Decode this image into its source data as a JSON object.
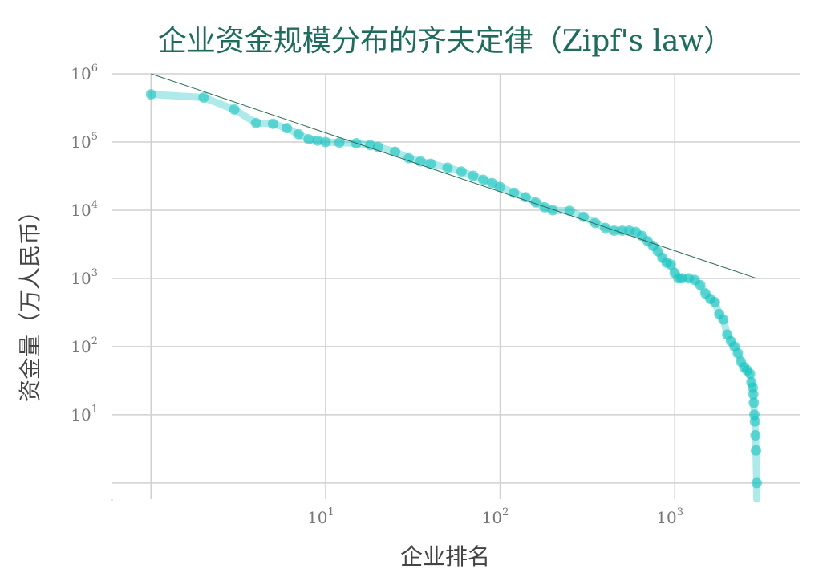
{
  "chart_data": {
    "type": "scatter",
    "title": "企业资金规模分布的齐夫定律（Zipf's law）",
    "xlabel": "企业排名",
    "ylabel": "资金量（万人民币）",
    "x_scale": "log",
    "y_scale": "log",
    "xlim": [
      0.6,
      5200
    ],
    "ylim": [
      0.58,
      1000000
    ],
    "grid": true,
    "x_ticks": [
      {
        "value": 1,
        "base": "",
        "exp": ""
      },
      {
        "value": 10,
        "base": "10",
        "exp": "1"
      },
      {
        "value": 100,
        "base": "10",
        "exp": "2"
      },
      {
        "value": 1000,
        "base": "10",
        "exp": "3"
      }
    ],
    "y_ticks": [
      {
        "value": 1,
        "base": "",
        "exp": ""
      },
      {
        "value": 10,
        "base": "10",
        "exp": "1"
      },
      {
        "value": 100,
        "base": "10",
        "exp": "2"
      },
      {
        "value": 1000,
        "base": "10",
        "exp": "3"
      },
      {
        "value": 10000,
        "base": "10",
        "exp": "4"
      },
      {
        "value": 100000,
        "base": "10",
        "exp": "5"
      },
      {
        "value": 1000000,
        "base": "10",
        "exp": "6"
      }
    ],
    "colors": {
      "points": "#17c3bf",
      "fit_line": "#2e6b55",
      "grid": "#d0d0d0",
      "title": "#1f6b5e"
    },
    "series": [
      {
        "type": "rank-size",
        "points": [
          [
            1,
            500000
          ],
          [
            2,
            450000
          ],
          [
            3,
            300000
          ],
          [
            4,
            190000
          ],
          [
            5,
            185000
          ],
          [
            6,
            160000
          ],
          [
            7,
            130000
          ],
          [
            8,
            110000
          ],
          [
            9,
            105000
          ],
          [
            10,
            100000
          ],
          [
            12,
            98000
          ],
          [
            15,
            96000
          ],
          [
            18,
            90000
          ],
          [
            20,
            85000
          ],
          [
            25,
            72000
          ],
          [
            30,
            58000
          ],
          [
            35,
            52000
          ],
          [
            40,
            48000
          ],
          [
            50,
            42000
          ],
          [
            60,
            37000
          ],
          [
            70,
            32000
          ],
          [
            80,
            28000
          ],
          [
            90,
            25000
          ],
          [
            100,
            22000
          ],
          [
            120,
            18000
          ],
          [
            140,
            15500
          ],
          [
            160,
            13000
          ],
          [
            180,
            11000
          ],
          [
            200,
            10000
          ],
          [
            250,
            9800
          ],
          [
            300,
            8000
          ],
          [
            350,
            6500
          ],
          [
            400,
            5500
          ],
          [
            450,
            5000
          ],
          [
            500,
            5000
          ],
          [
            550,
            5000
          ],
          [
            600,
            4800
          ],
          [
            650,
            4200
          ],
          [
            700,
            3500
          ],
          [
            750,
            3000
          ],
          [
            800,
            2500
          ],
          [
            850,
            2000
          ],
          [
            900,
            1700
          ],
          [
            950,
            1600
          ],
          [
            1000,
            1200
          ],
          [
            1050,
            1000
          ],
          [
            1100,
            1000
          ],
          [
            1200,
            1000
          ],
          [
            1300,
            950
          ],
          [
            1400,
            800
          ],
          [
            1500,
            600
          ],
          [
            1600,
            500
          ],
          [
            1700,
            450
          ],
          [
            1800,
            300
          ],
          [
            1900,
            250
          ],
          [
            2000,
            150
          ],
          [
            2100,
            120
          ],
          [
            2200,
            100
          ],
          [
            2300,
            80
          ],
          [
            2400,
            60
          ],
          [
            2500,
            50
          ],
          [
            2600,
            45
          ],
          [
            2700,
            40
          ],
          [
            2750,
            30
          ],
          [
            2800,
            25
          ],
          [
            2820,
            20
          ],
          [
            2840,
            15
          ],
          [
            2860,
            10
          ],
          [
            2880,
            8
          ],
          [
            2900,
            5
          ],
          [
            2920,
            3
          ],
          [
            2950,
            1
          ]
        ]
      },
      {
        "type": "fit",
        "points": [
          [
            1,
            1000000
          ],
          [
            2950,
            1000
          ]
        ]
      }
    ]
  }
}
